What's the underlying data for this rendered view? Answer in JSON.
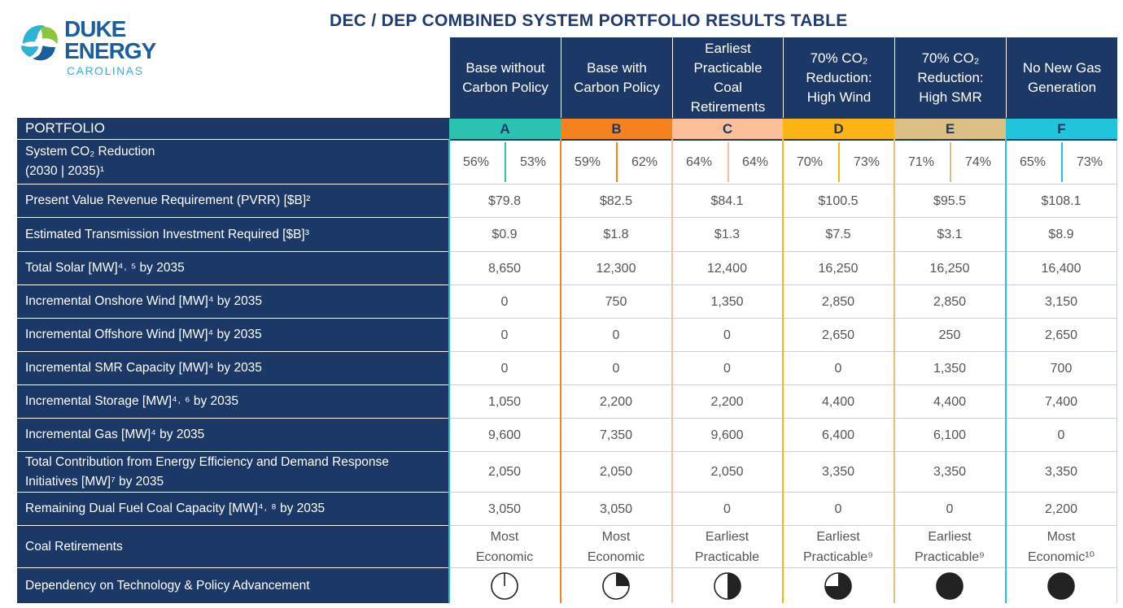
{
  "logo": {
    "line1": "DUKE",
    "line2": "ENERGY",
    "line3": "CAROLINAS",
    "mark": "duke-energy-logo"
  },
  "title": "DEC / DEP COMBINED SYSTEM PORTFOLIO RESULTS TABLE",
  "colors": {
    "navy": "#1c3866",
    "A": "#2bc2b0",
    "B": "#f6821f",
    "C": "#fbbf9a",
    "D": "#fdb515",
    "E": "#dcbf84",
    "F": "#22c4dc"
  },
  "portfolio_label": "PORTFOLIO",
  "columns": [
    {
      "letter": "A",
      "header_lines": [
        "Base without",
        "Carbon Policy"
      ]
    },
    {
      "letter": "B",
      "header_lines": [
        "Base with",
        "Carbon Policy"
      ]
    },
    {
      "letter": "C",
      "header_lines": [
        "Earliest",
        "Practicable",
        "Coal",
        "Retirements"
      ]
    },
    {
      "letter": "D",
      "header_lines": [
        "70% CO₂",
        "Reduction:",
        "High Wind"
      ]
    },
    {
      "letter": "E",
      "header_lines": [
        "70% CO₂",
        "Reduction:",
        "High SMR"
      ]
    },
    {
      "letter": "F",
      "header_lines": [
        "No New Gas",
        "Generation"
      ]
    }
  ],
  "rows": [
    {
      "label_lines": [
        "System CO₂ Reduction",
        "(2030 | 2035)¹"
      ],
      "split": true,
      "values": [
        [
          "56%",
          "53%"
        ],
        [
          "59%",
          "62%"
        ],
        [
          "64%",
          "64%"
        ],
        [
          "70%",
          "73%"
        ],
        [
          "71%",
          "74%"
        ],
        [
          "65%",
          "73%"
        ]
      ]
    },
    {
      "label_lines": [
        "Present Value Revenue Requirement (PVRR) [$B]²"
      ],
      "values": [
        "$79.8",
        "$82.5",
        "$84.1",
        "$100.5",
        "$95.5",
        "$108.1"
      ]
    },
    {
      "label_lines": [
        "Estimated Transmission Investment Required [$B]³"
      ],
      "values": [
        "$0.9",
        "$1.8",
        "$1.3",
        "$7.5",
        "$3.1",
        "$8.9"
      ]
    },
    {
      "label_lines": [
        "Total Solar [MW]⁴˒ ⁵ by 2035"
      ],
      "values": [
        "8,650",
        "12,300",
        "12,400",
        "16,250",
        "16,250",
        "16,400"
      ]
    },
    {
      "label_lines": [
        "Incremental Onshore Wind [MW]⁴ by 2035"
      ],
      "values": [
        "0",
        "750",
        "1,350",
        "2,850",
        "2,850",
        "3,150"
      ]
    },
    {
      "label_lines": [
        "Incremental Offshore Wind [MW]⁴ by 2035"
      ],
      "values": [
        "0",
        "0",
        "0",
        "2,650",
        "250",
        "2,650"
      ]
    },
    {
      "label_lines": [
        "Incremental SMR Capacity [MW]⁴ by 2035"
      ],
      "values": [
        "0",
        "0",
        "0",
        "0",
        "1,350",
        "700"
      ]
    },
    {
      "label_lines": [
        "Incremental Storage [MW]⁴˒ ⁶ by 2035"
      ],
      "values": [
        "1,050",
        "2,200",
        "2,200",
        "4,400",
        "4,400",
        "7,400"
      ]
    },
    {
      "label_lines": [
        "Incremental Gas [MW]⁴ by 2035"
      ],
      "values": [
        "9,600",
        "7,350",
        "9,600",
        "6,400",
        "6,100",
        "0"
      ]
    },
    {
      "label_lines": [
        "Total Contribution from Energy Efficiency and Demand Response",
        "Initiatives [MW]⁷ by 2035"
      ],
      "values": [
        "2,050",
        "2,050",
        "2,050",
        "3,350",
        "3,350",
        "3,350"
      ]
    },
    {
      "label_lines": [
        "Remaining Dual Fuel Coal Capacity [MW]⁴˒ ⁸ by 2035"
      ],
      "values": [
        "3,050",
        "3,050",
        "0",
        "0",
        "0",
        "2,200"
      ]
    },
    {
      "label_lines": [
        "Coal Retirements"
      ],
      "values": [
        "Most\nEconomic",
        "Most\nEconomic",
        "Earliest\nPracticable",
        "Earliest\nPracticable⁹",
        "Earliest\nPracticable⁹",
        "Most\nEconomic¹⁰"
      ]
    },
    {
      "label_lines": [
        "Dependency on Technology & Policy Advancement"
      ],
      "pie": true,
      "pie_fraction": [
        0,
        0.25,
        0.5,
        0.75,
        1,
        1
      ]
    }
  ]
}
